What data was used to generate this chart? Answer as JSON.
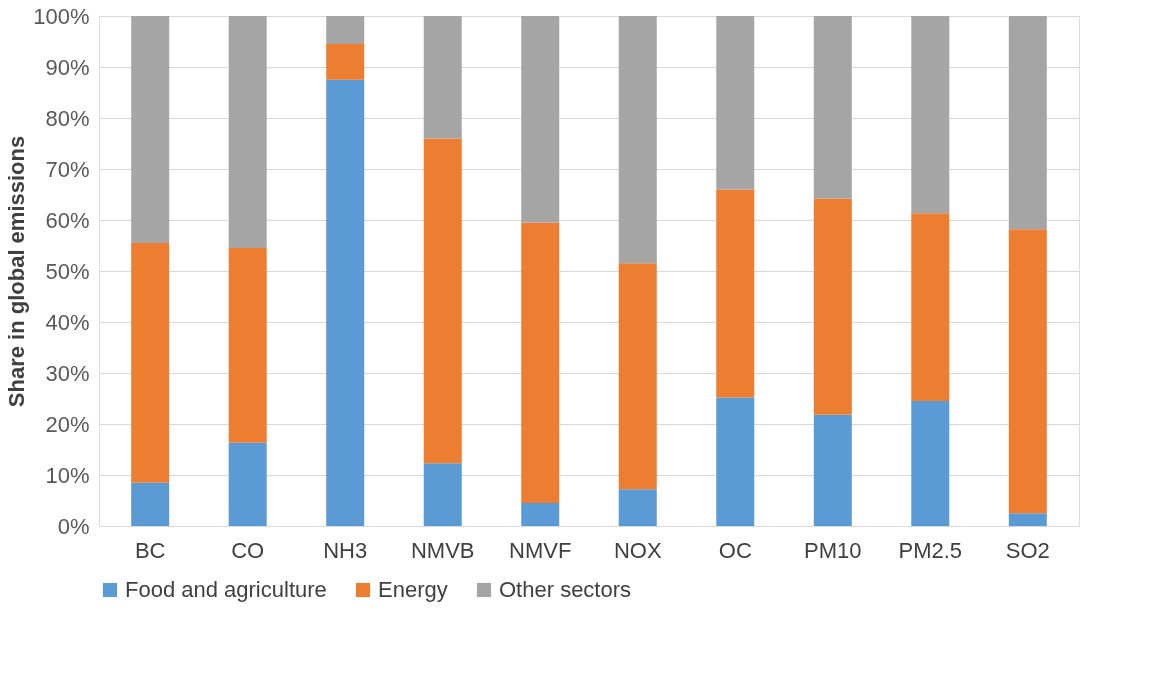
{
  "chart_data": {
    "type": "bar",
    "stacked": true,
    "ylabel": "Share in global emissions",
    "categories": [
      "BC",
      "CO",
      "NH3",
      "NMVB",
      "NMVF",
      "NOX",
      "OC",
      "PM10",
      "PM2.5",
      "SO2"
    ],
    "series": [
      {
        "name": "Food and agriculture",
        "color": "#5b9bd5",
        "values": [
          8.5,
          16.3,
          87.5,
          12.3,
          4.5,
          7.2,
          25.2,
          21.8,
          24.5,
          2.5
        ]
      },
      {
        "name": "Energy",
        "color": "#ed7d31",
        "values": [
          47.0,
          38.2,
          7.0,
          63.7,
          55.0,
          44.3,
          40.8,
          42.4,
          36.8,
          55.7
        ]
      },
      {
        "name": "Other sectors",
        "color": "#a5a5a5",
        "values": [
          44.5,
          45.5,
          5.5,
          24.0,
          40.5,
          48.5,
          34.0,
          35.8,
          38.7,
          41.8
        ]
      }
    ],
    "ylim": [
      0,
      100
    ],
    "yticks": [
      {
        "value": 0,
        "label": "0%"
      },
      {
        "value": 10,
        "label": "10%"
      },
      {
        "value": 20,
        "label": "20%"
      },
      {
        "value": 30,
        "label": "30%"
      },
      {
        "value": 40,
        "label": "40%"
      },
      {
        "value": 50,
        "label": "50%"
      },
      {
        "value": 60,
        "label": "60%"
      },
      {
        "value": 70,
        "label": "70%"
      },
      {
        "value": 80,
        "label": "80%"
      },
      {
        "value": 90,
        "label": "90%"
      },
      {
        "value": 100,
        "label": "100%"
      }
    ],
    "grid": "y",
    "legend": "bottom"
  }
}
